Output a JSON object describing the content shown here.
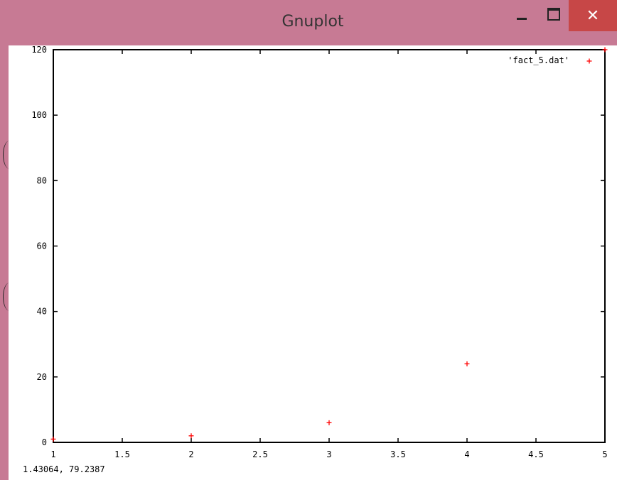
{
  "window": {
    "title": "Gnuplot",
    "close_glyph": "✕",
    "title_color": "#c77a94",
    "close_color": "#c74747"
  },
  "plot": {
    "legend_label": "'fact_5.dat'",
    "point_color": "#ff0000",
    "x_ticks": [
      "1",
      "1.5",
      "2",
      "2.5",
      "3",
      "3.5",
      "4",
      "4.5",
      "5"
    ],
    "y_ticks": [
      "0",
      "20",
      "40",
      "60",
      "80",
      "100",
      "120"
    ]
  },
  "status": {
    "coords": "1.43064,  79.2387"
  },
  "chart_data": {
    "type": "scatter",
    "series": [
      {
        "name": "'fact_5.dat'",
        "x": [
          1,
          2,
          3,
          4,
          5
        ],
        "y": [
          1,
          2,
          6,
          24,
          120
        ]
      }
    ],
    "xlim": [
      1,
      5
    ],
    "ylim": [
      0,
      120
    ],
    "x_ticks": [
      1,
      1.5,
      2,
      2.5,
      3,
      3.5,
      4,
      4.5,
      5
    ],
    "y_ticks": [
      0,
      20,
      40,
      60,
      80,
      100,
      120
    ],
    "grid": false,
    "legend_position": "top-right",
    "marker": "plus"
  }
}
